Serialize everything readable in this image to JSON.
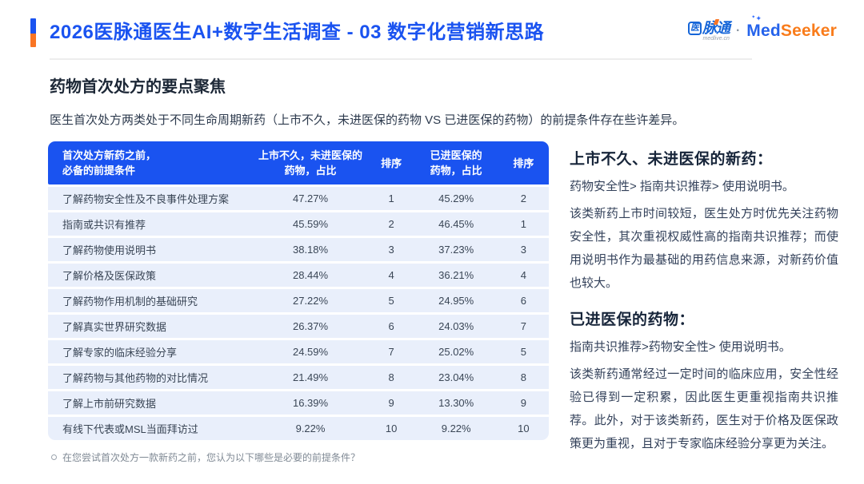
{
  "header": {
    "title": "2026医脉通医生AI+数字生活调查 - 03 数字化营销新思路",
    "logo": {
      "medlive_char": "医",
      "medlive_rest": "脉通",
      "medlive_sub": "medlive.cn",
      "separator": "·",
      "medseeker_med": "Med",
      "medseeker_seeker": "Seeker",
      "sparkle_large": "✦",
      "sparkle_small": "✦"
    }
  },
  "section": {
    "title": "药物首次处方的要点聚焦",
    "subtitle": "医生首次处方两类处于不同生命周期新药（上市不久，未进医保的药物 VS 已进医保的药物）的前提条件存在些许差异。"
  },
  "table": {
    "headers": [
      "首次处方新药之前，\n必备的前提条件",
      "上市不久，未进医保的\n药物，占比",
      "排序",
      "已进医保的\n药物，占比",
      "排序"
    ],
    "rows": [
      {
        "condition": "了解药物安全性及不良事件处理方案",
        "pct_new": "47.27%",
        "rank_new": "1",
        "pct_covered": "45.29%",
        "rank_covered": "2"
      },
      {
        "condition": "指南或共识有推荐",
        "pct_new": "45.59%",
        "rank_new": "2",
        "pct_covered": "46.45%",
        "rank_covered": "1"
      },
      {
        "condition": "了解药物使用说明书",
        "pct_new": "38.18%",
        "rank_new": "3",
        "pct_covered": "37.23%",
        "rank_covered": "3"
      },
      {
        "condition": "了解价格及医保政策",
        "pct_new": "28.44%",
        "rank_new": "4",
        "pct_covered": "36.21%",
        "rank_covered": "4"
      },
      {
        "condition": "了解药物作用机制的基础研究",
        "pct_new": "27.22%",
        "rank_new": "5",
        "pct_covered": "24.95%",
        "rank_covered": "6"
      },
      {
        "condition": "了解真实世界研究数据",
        "pct_new": "26.37%",
        "rank_new": "6",
        "pct_covered": "24.03%",
        "rank_covered": "7"
      },
      {
        "condition": "了解专家的临床经验分享",
        "pct_new": "24.59%",
        "rank_new": "7",
        "pct_covered": "25.02%",
        "rank_covered": "5"
      },
      {
        "condition": "了解药物与其他药物的对比情况",
        "pct_new": "21.49%",
        "rank_new": "8",
        "pct_covered": "23.04%",
        "rank_covered": "8"
      },
      {
        "condition": "了解上市前研究数据",
        "pct_new": "16.39%",
        "rank_new": "9",
        "pct_covered": "13.30%",
        "rank_covered": "9"
      },
      {
        "condition": "有线下代表或MSL当面拜访过",
        "pct_new": "9.22%",
        "rank_new": "10",
        "pct_covered": "9.22%",
        "rank_covered": "10"
      }
    ]
  },
  "insights": [
    {
      "heading": "上市不久、未进医保的新药：",
      "priority": "药物安全性> 指南共识推荐> 使用说明书。",
      "body": "该类新药上市时间较短，医生处方时优先关注药物安全性，其次重视权威性高的指南共识推荐；而使用说明书作为最基础的用药信息来源，对新药价值也较大。"
    },
    {
      "heading": "已进医保的药物：",
      "priority": "指南共识推荐>药物安全性> 使用说明书。",
      "body": "该类新药通常经过一定时间的临床应用，安全性经验已得到一定积累，因此医生更重视指南共识推荐。此外，对于该类新药，医生对于价格及医保政策更为重视，且对于专家临床经验分享更为关注。"
    }
  ],
  "footnote": "在您尝试首次处方一款新药之前，您认为以下哪些是必要的前提条件？",
  "colors": {
    "primary_blue": "#1a53f0",
    "accent_orange": "#f97524",
    "medseeker_blue": "#2563eb",
    "medseeker_orange": "#f97c1b",
    "table_row_bg": "#e9effb"
  }
}
